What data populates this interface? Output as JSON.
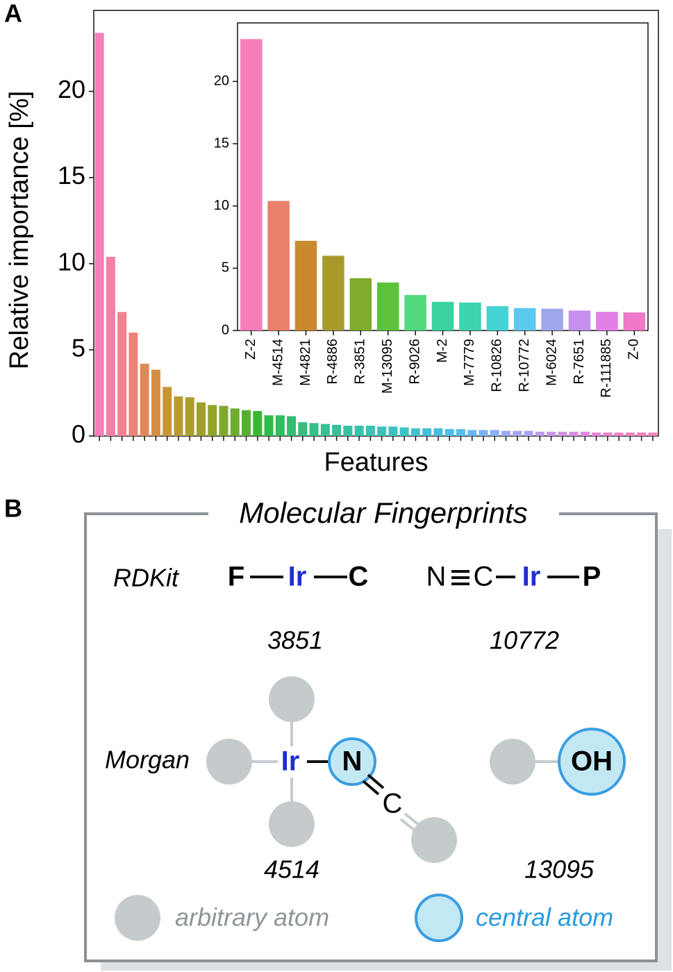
{
  "panel_labels": [
    "A",
    "B"
  ],
  "chart_data": [
    {
      "type": "bar",
      "ylabel": "Relative importance [%]",
      "xlabel": "Features",
      "categories": [
        null,
        null,
        null,
        null,
        null,
        null,
        null,
        null,
        null,
        null,
        null,
        null,
        null,
        null,
        null,
        null,
        null,
        null,
        null,
        null,
        null,
        null,
        null,
        null,
        null,
        null,
        null,
        null,
        null,
        null,
        null,
        null,
        null,
        null,
        null,
        null,
        null,
        null,
        null,
        null,
        null,
        null,
        null,
        null,
        null,
        null,
        null,
        null,
        null,
        null
      ],
      "values": [
        23.4,
        10.4,
        7.2,
        6.0,
        4.2,
        3.85,
        2.85,
        2.3,
        2.25,
        1.95,
        1.8,
        1.75,
        1.6,
        1.5,
        1.45,
        1.2,
        1.2,
        1.15,
        0.8,
        0.75,
        0.7,
        0.65,
        0.6,
        0.6,
        0.6,
        0.55,
        0.55,
        0.5,
        0.45,
        0.45,
        0.45,
        0.4,
        0.4,
        0.35,
        0.35,
        0.35,
        0.3,
        0.3,
        0.3,
        0.25,
        0.25,
        0.25,
        0.25,
        0.25,
        0.2,
        0.2,
        0.2,
        0.2,
        0.2,
        0.2
      ],
      "colors": [
        "#f77eb9",
        "#f57fa6",
        "#f28190",
        "#ec8478",
        "#e08a5c",
        "#d58f45",
        "#c99435",
        "#bc9830",
        "#ae9c2d",
        "#a0a02c",
        "#91a42c",
        "#80a92d",
        "#6dad2e",
        "#55b230",
        "#3bb634",
        "#2fba4c",
        "#30bc60",
        "#32bd70",
        "#34be7d",
        "#36bf88",
        "#37c092",
        "#38c09b",
        "#39c1a3",
        "#3ac1ab",
        "#3bc1b2",
        "#3cc2b9",
        "#3dc2c0",
        "#3ec2c7",
        "#40c2ce",
        "#42c1d6",
        "#46c0de",
        "#4dbee7",
        "#58bbef",
        "#68b7f3",
        "#7ab3f5",
        "#8aaff5",
        "#99aaf4",
        "#a6a6f2",
        "#b2a1f0",
        "#bd9cee",
        "#c797eb",
        "#d192e8",
        "#da8de5",
        "#e288e0",
        "#e984d9",
        "#ee81d1",
        "#f27fc9",
        "#f57ec2",
        "#f77ebc",
        "#f87eb7"
      ],
      "ylim": [
        0,
        24.7
      ],
      "yticks": [
        0,
        5,
        10,
        15,
        20
      ]
    },
    {
      "type": "bar",
      "categories": [
        "Z-2",
        "M-4514",
        "M-4821",
        "R-4886",
        "R-3851",
        "M-13095",
        "R-9026",
        "M-2",
        "M-7779",
        "R-10826",
        "R-10772",
        "M-6024",
        "R-7651",
        "R-111885",
        "Z-0"
      ],
      "values": [
        23.4,
        10.4,
        7.2,
        6.0,
        4.2,
        3.85,
        2.85,
        2.3,
        2.25,
        1.95,
        1.8,
        1.75,
        1.6,
        1.5,
        1.45
      ],
      "colors": [
        "#f77eb9",
        "#e8806a",
        "#c9892f",
        "#a89a2b",
        "#7fac2c",
        "#5bc43a",
        "#53d97d",
        "#3ad3a0",
        "#3fd3b0",
        "#44d4d4",
        "#5bc8f0",
        "#a0a6ec",
        "#c58ff0",
        "#e47fe8",
        "#f078c8"
      ],
      "ylim": [
        0,
        24.7
      ],
      "yticks": [
        0,
        5,
        10,
        15,
        20
      ]
    }
  ],
  "fingerprints": {
    "title": "Molecular Fingerprints",
    "rdkit": {
      "label": "RDKit",
      "fragments": [
        {
          "atoms": [
            "F",
            "Ir",
            "C"
          ],
          "id": "3851"
        },
        {
          "atoms": [
            "N",
            "C",
            "Ir",
            "P"
          ],
          "id": "10772"
        }
      ]
    },
    "morgan": {
      "label": "Morgan",
      "fragments": [
        {
          "atoms": [
            "Ir",
            "N",
            "C"
          ],
          "id": "4514"
        },
        {
          "atoms": [
            "OH"
          ],
          "id": "13095"
        }
      ]
    },
    "legend": [
      "arbitrary atom",
      "central atom"
    ]
  }
}
